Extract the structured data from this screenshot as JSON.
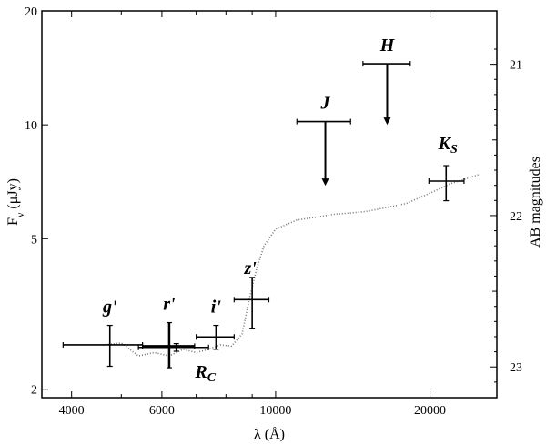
{
  "chart_data": {
    "type": "scatter",
    "title": "",
    "xlabel": "λ (Å)",
    "ylabel": "F",
    "ylabel_sub": "ν",
    "ylabel_unit": " (μJy)",
    "y2label": "AB magnitudes",
    "x_scale": "log",
    "y_scale": "log",
    "xlim": [
      3500,
      27000
    ],
    "ylim": [
      1.9,
      20
    ],
    "x_ticks": [
      {
        "value": 4000,
        "label": "4000"
      },
      {
        "value": 6000,
        "label": "6000"
      },
      {
        "value": 10000,
        "label": "10000"
      },
      {
        "value": 20000,
        "label": "20000"
      }
    ],
    "x_minor_ticks": [
      5000,
      7000,
      8000,
      9000,
      3000
    ],
    "y_ticks": [
      {
        "value": 2,
        "label": "2"
      },
      {
        "value": 5,
        "label": "5"
      },
      {
        "value": 10,
        "label": "10"
      },
      {
        "value": 20,
        "label": "20"
      }
    ],
    "y2_ticks": [
      {
        "mag": 21,
        "label": "21"
      },
      {
        "mag": 22,
        "label": "22"
      },
      {
        "mag": 23,
        "label": "23"
      }
    ],
    "points": [
      {
        "band": "g'",
        "main": "g'",
        "sub": "",
        "x": 4750,
        "xerr_lo": 3850,
        "xerr_hi": 5500,
        "y": 2.62,
        "y_lo": 2.3,
        "y_hi": 2.95,
        "upper_limit": false
      },
      {
        "band": "r'",
        "main": "r'",
        "sub": "",
        "x": 6200,
        "xerr_lo": 5500,
        "xerr_hi": 6950,
        "y": 2.6,
        "y_lo": 2.28,
        "y_hi": 3.0,
        "upper_limit": false
      },
      {
        "band": "Rc",
        "main": "R",
        "sub": "C",
        "x": 6400,
        "xerr_lo": 5400,
        "xerr_hi": 7400,
        "y": 2.58,
        "y_lo": 2.52,
        "y_hi": 2.64,
        "upper_limit": false
      },
      {
        "band": "i'",
        "main": "i'",
        "sub": "",
        "x": 7650,
        "xerr_lo": 7000,
        "xerr_hi": 8300,
        "y": 2.75,
        "y_lo": 2.55,
        "y_hi": 2.95,
        "upper_limit": false
      },
      {
        "band": "z'",
        "main": "z'",
        "sub": "",
        "x": 9000,
        "xerr_lo": 8300,
        "xerr_hi": 9700,
        "y": 3.45,
        "y_lo": 2.9,
        "y_hi": 3.95,
        "upper_limit": false
      },
      {
        "band": "J",
        "main": "J",
        "sub": "",
        "x": 12500,
        "xerr_lo": 11000,
        "xerr_hi": 14000,
        "y": 10.2,
        "y_lo": 6.9,
        "y_hi": 10.2,
        "upper_limit": true
      },
      {
        "band": "H",
        "main": "H",
        "sub": "",
        "x": 16500,
        "xerr_lo": 14800,
        "xerr_hi": 18300,
        "y": 14.5,
        "y_lo": 10.0,
        "y_hi": 14.5,
        "upper_limit": true
      },
      {
        "band": "Ks",
        "main": "K",
        "sub": "S",
        "x": 21500,
        "xerr_lo": 19900,
        "xerr_hi": 23300,
        "y": 7.1,
        "y_lo": 6.3,
        "y_hi": 7.8,
        "upper_limit": false
      }
    ],
    "model_spectrum": {
      "style": "dotted",
      "x": [
        4600,
        5000,
        5400,
        5800,
        6200,
        6600,
        7000,
        7400,
        7800,
        8200,
        8600,
        8900,
        9200,
        9500,
        10000,
        11000,
        12000,
        13000,
        14000,
        15000,
        16000,
        17000,
        18000,
        19000,
        20000,
        21000,
        22000,
        23500,
        25000
      ],
      "y": [
        2.62,
        2.65,
        2.45,
        2.5,
        2.45,
        2.55,
        2.5,
        2.55,
        2.62,
        2.6,
        2.8,
        3.5,
        4.2,
        4.8,
        5.3,
        5.6,
        5.7,
        5.8,
        5.85,
        5.9,
        6.0,
        6.1,
        6.2,
        6.4,
        6.6,
        6.8,
        7.0,
        7.2,
        7.4
      ]
    }
  }
}
